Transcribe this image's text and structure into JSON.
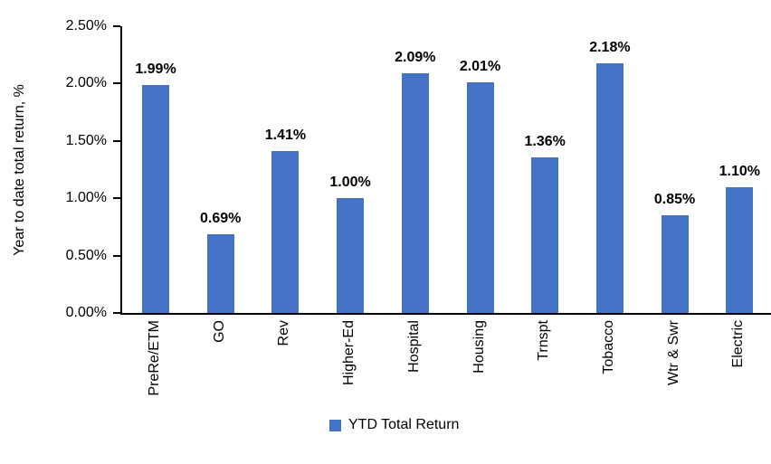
{
  "y_axis": {
    "title": "Year to date total return, %",
    "ticks": [
      "0.00%",
      "0.50%",
      "1.00%",
      "1.50%",
      "2.00%",
      "2.50%"
    ],
    "min": 0,
    "max": 2.5
  },
  "legend": {
    "label": "YTD Total Return",
    "swatch_color": "#4472C4"
  },
  "chart_data": {
    "type": "bar",
    "title": "",
    "categories": [
      "PreRe/ETM",
      "GO",
      "Rev",
      "Higher-Ed",
      "Hospital",
      "Housing",
      "Trnspt",
      "Tobacco",
      "Wtr & Swr",
      "Electric"
    ],
    "series": [
      {
        "name": "YTD Total Return",
        "values": [
          1.99,
          0.69,
          1.41,
          1.0,
          2.09,
          2.01,
          1.36,
          2.18,
          0.85,
          1.1
        ]
      }
    ],
    "data_labels": [
      "1.99%",
      "0.69%",
      "1.41%",
      "1.00%",
      "2.09%",
      "2.01%",
      "1.36%",
      "2.18%",
      "0.85%",
      "1.10%"
    ],
    "xlabel": "",
    "ylabel": "Year to date total return, %",
    "ylim": [
      0,
      2.5
    ],
    "grid": false,
    "bar_color": "#4472C4",
    "legend_position": "bottom"
  }
}
